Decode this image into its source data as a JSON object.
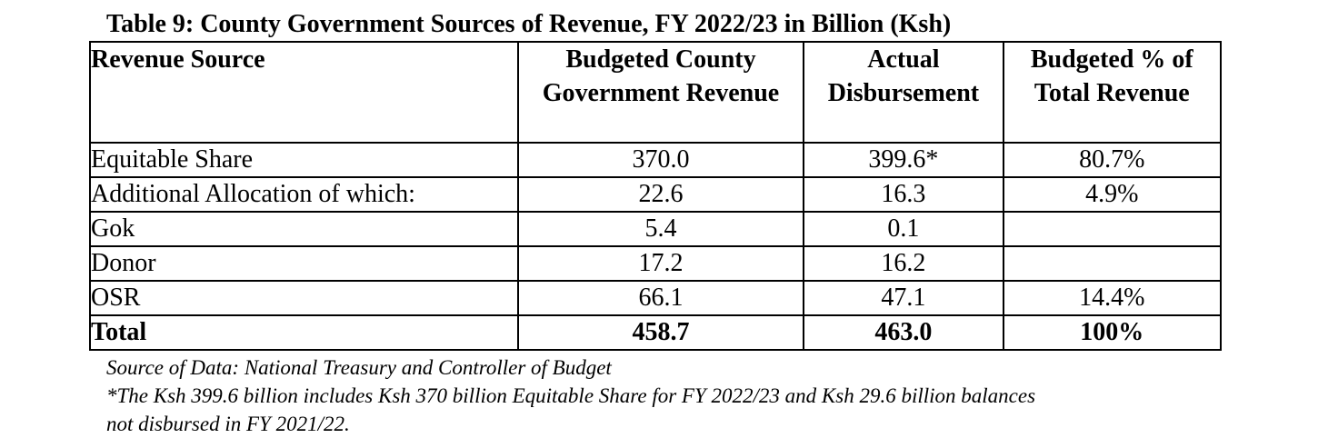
{
  "title": "Table 9: County Government Sources of Revenue, FY 2022/23 in Billion (Ksh)",
  "table": {
    "headers": {
      "source": "Revenue Source",
      "budgeted": "Budgeted County Government Revenue",
      "actual": "Actual Disbursement",
      "pct": "Budgeted % of Total Revenue"
    },
    "rows": [
      {
        "source": "Equitable Share",
        "budgeted": "370.0",
        "actual": "399.6*",
        "pct": "80.7%"
      },
      {
        "source": "Additional Allocation of which:",
        "budgeted": "22.6",
        "actual": "16.3",
        "pct": "4.9%"
      },
      {
        "source": "Gok",
        "budgeted": "5.4",
        "actual": "0.1",
        "pct": ""
      },
      {
        "source": "Donor",
        "budgeted": "17.2",
        "actual": "16.2",
        "pct": ""
      },
      {
        "source": "OSR",
        "budgeted": "66.1",
        "actual": "47.1",
        "pct": "14.4%"
      },
      {
        "source": "Total",
        "budgeted": "458.7",
        "actual": "463.0",
        "pct": "100%"
      }
    ]
  },
  "notes": {
    "source": "Source of Data: National Treasury and Controller of Budget",
    "footnote_line1": "*The Ksh 399.6 billion includes Ksh 370 billion Equitable Share for FY 2022/23 and Ksh 29.6 billion balances",
    "footnote_line2": "not disbursed in FY 2021/22."
  }
}
